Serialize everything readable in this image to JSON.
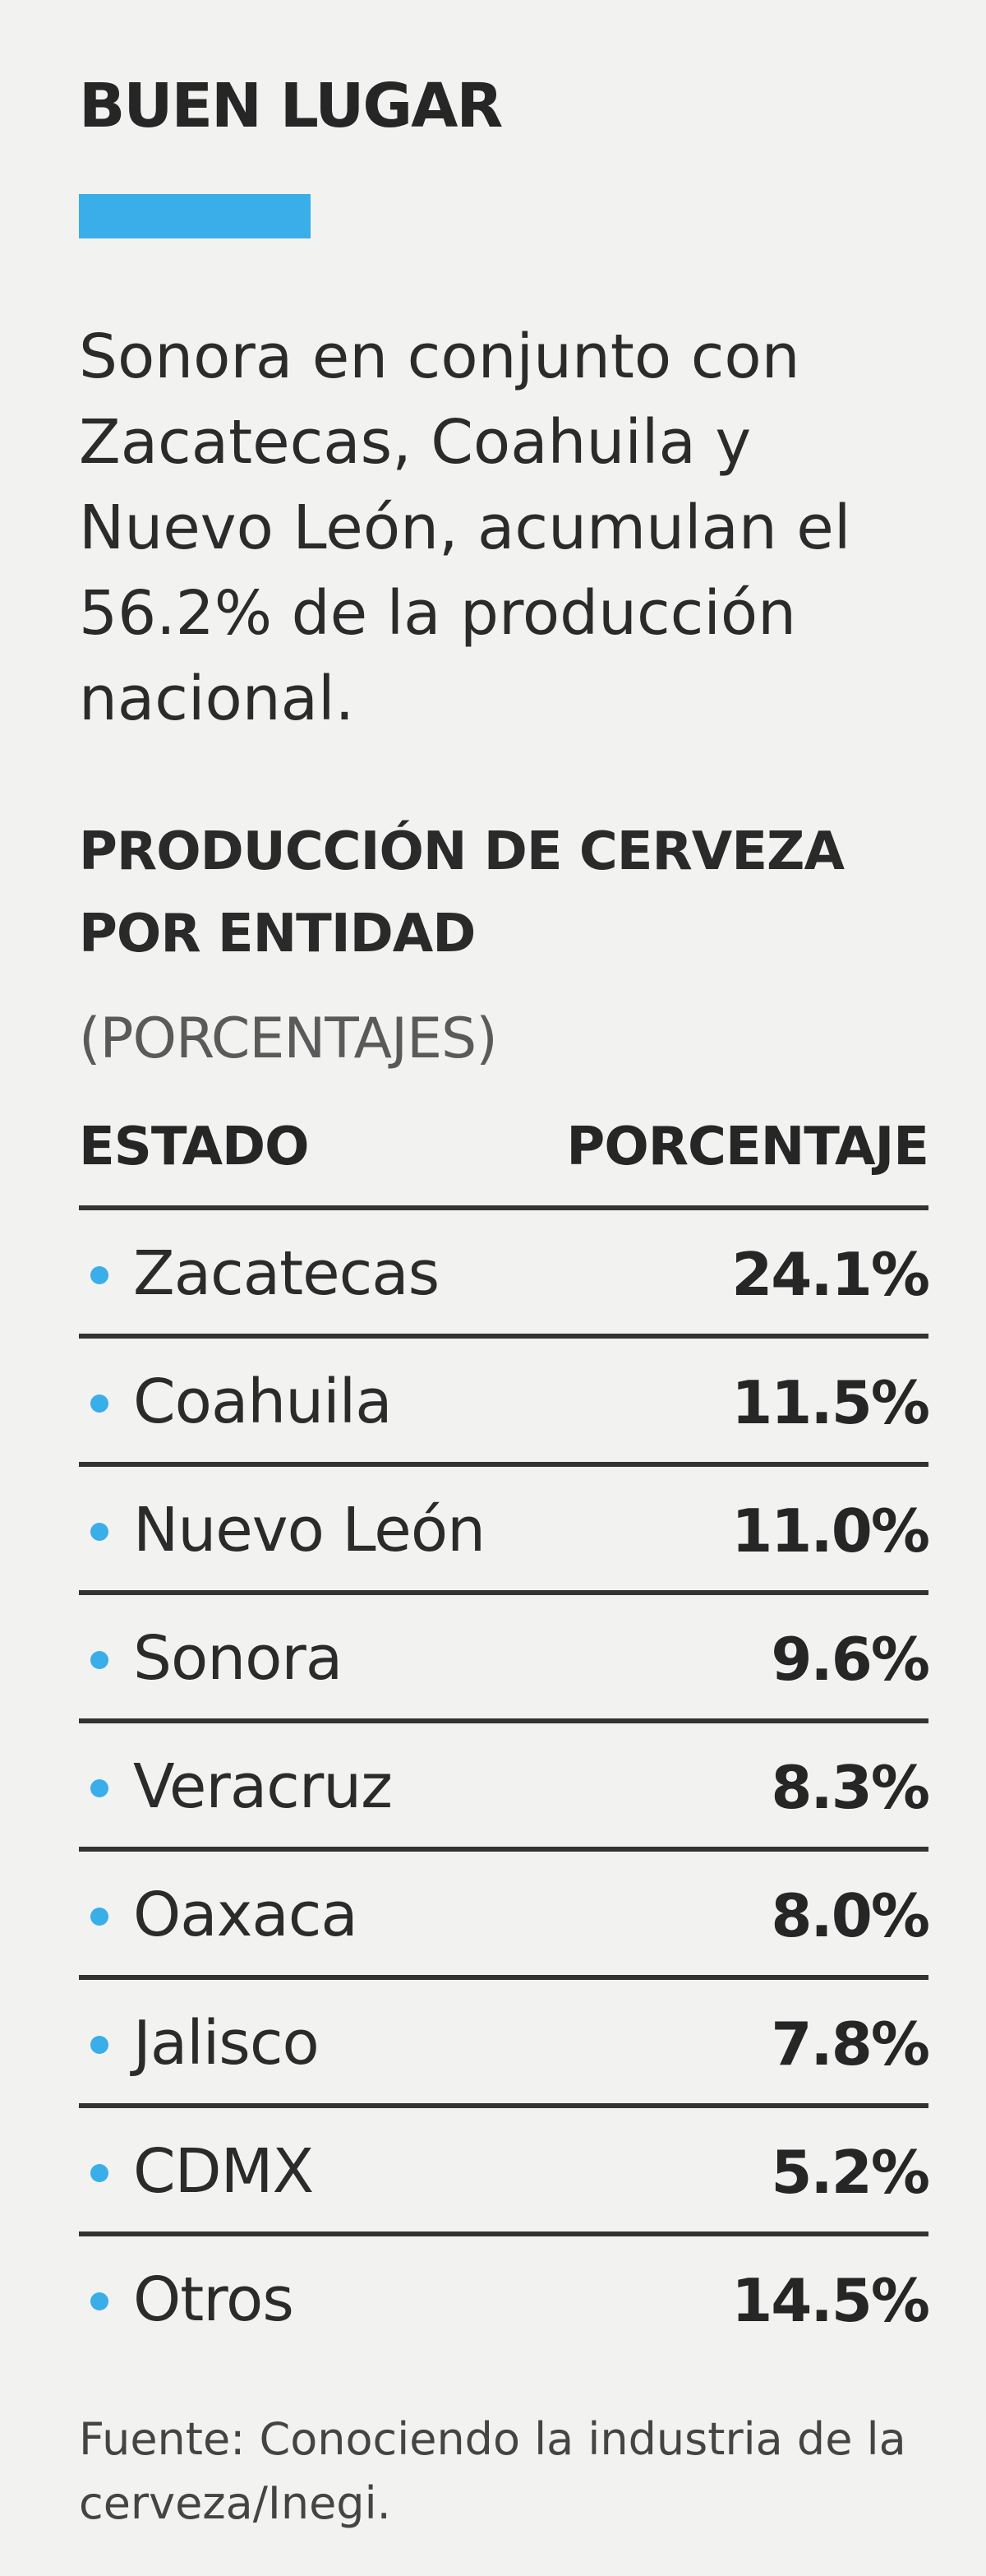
{
  "header": {
    "kicker": "BUEN LUGAR",
    "accent_color": "#3aaee8"
  },
  "summary": "Sonora en conjunto con Zacatecas, Coahuila y Nuevo León, acumulan el 56.2% de la producción nacional.",
  "chart_data": {
    "type": "table",
    "title": "PRODUCCIÓN DE CERVEZA POR ENTIDAD",
    "subtitle": "(PORCENTAJES)",
    "columns": [
      "ESTADO",
      "PORCENTAJE"
    ],
    "rows": [
      {
        "state": "Zacatecas",
        "value": "24.1%"
      },
      {
        "state": "Coahuila",
        "value": "11.5%"
      },
      {
        "state": "Nuevo León",
        "value": "11.0%"
      },
      {
        "state": "Sonora",
        "value": "9.6%"
      },
      {
        "state": "Veracruz",
        "value": "8.3%"
      },
      {
        "state": "Oaxaca",
        "value": "8.0%"
      },
      {
        "state": "Jalisco",
        "value": "7.8%"
      },
      {
        "state": "CDMX",
        "value": "5.2%"
      },
      {
        "state": "Otros",
        "value": "14.5%"
      }
    ],
    "bullet_color": "#3aaee8"
  },
  "source": "Fuente: Conociendo la industria de la cerveza/Inegi."
}
